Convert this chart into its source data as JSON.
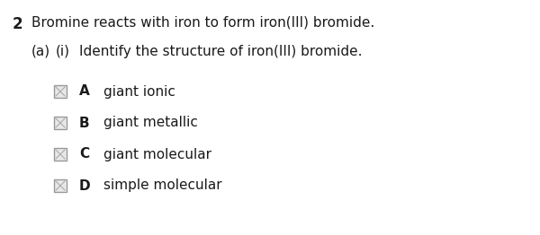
{
  "background_color": "#ffffff",
  "question_number": "2",
  "question_text": "Bromine reacts with iron to form iron(III) bromide.",
  "sub_label_a": "(a)",
  "sub_label_i": "(i)",
  "sub_question_text": "Identify the structure of iron(III) bromide.",
  "options": [
    {
      "letter": "A",
      "text": "giant ionic"
    },
    {
      "letter": "B",
      "text": "giant metallic"
    },
    {
      "letter": "C",
      "text": "giant molecular"
    },
    {
      "letter": "D",
      "text": "simple molecular"
    }
  ],
  "text_color": "#1a1a1a",
  "box_edge_color": "#999999",
  "box_face_color": "#e8e8e8",
  "figsize": [
    6.0,
    2.62
  ],
  "dpi": 100,
  "main_fontsize": 11.0,
  "option_fontsize": 11.0
}
